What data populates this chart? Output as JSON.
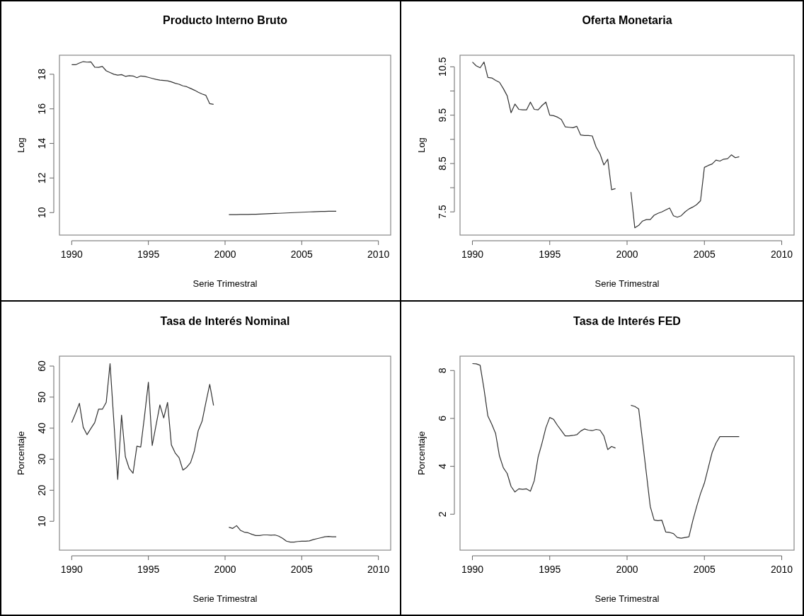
{
  "chart_data": [
    {
      "type": "line",
      "title": "Producto Interno Bruto",
      "xlabel": "Serie Trimestral",
      "ylabel": "Log",
      "xlim": [
        1989.2,
        2010.8
      ],
      "ylim": [
        8.7,
        19.1
      ],
      "xticks": [
        1990,
        1995,
        2000,
        2005,
        2010
      ],
      "yticks": [
        10,
        12,
        14,
        16,
        18
      ],
      "x": [
        1990,
        1990.25,
        1990.5,
        1990.75,
        1991,
        1991.25,
        1991.5,
        1991.75,
        1992,
        1992.25,
        1992.5,
        1992.75,
        1993,
        1993.25,
        1993.5,
        1993.75,
        1994,
        1994.25,
        1994.5,
        1994.75,
        1995,
        1995.25,
        1995.5,
        1995.75,
        1996,
        1996.25,
        1996.5,
        1996.75,
        1997,
        1997.25,
        1997.5,
        1997.75,
        1998,
        1998.25,
        1998.5,
        1998.75,
        1999,
        1999.25,
        1999.5,
        1999.75,
        2000,
        2000.25,
        2000.5,
        2000.75,
        2001,
        2001.25,
        2001.5,
        2001.75,
        2002,
        2002.25,
        2002.5,
        2002.75,
        2003,
        2003.25,
        2003.5,
        2003.75,
        2004,
        2004.25,
        2004.5,
        2004.75,
        2005,
        2005.25,
        2005.5,
        2005.75,
        2006,
        2006.25,
        2006.5,
        2006.75,
        2007,
        2007.25
      ],
      "series": [
        {
          "color": "#333333",
          "values": [
            18.55,
            18.55,
            18.65,
            18.73,
            18.7,
            18.72,
            18.41,
            18.4,
            18.45,
            18.2,
            18.1,
            18.0,
            17.95,
            17.98,
            17.88,
            17.92,
            17.9,
            17.8,
            17.9,
            17.88,
            17.82,
            17.76,
            17.7,
            17.66,
            17.64,
            17.62,
            17.56,
            17.48,
            17.42,
            17.33,
            17.28,
            17.18,
            17.08,
            16.96,
            16.86,
            16.78,
            16.3,
            16.26,
            null,
            null,
            null,
            9.88,
            9.88,
            9.88,
            9.89,
            9.89,
            9.89,
            9.9,
            9.9,
            9.91,
            9.92,
            9.93,
            9.94,
            9.95,
            9.96,
            9.97,
            9.98,
            9.99,
            10.0,
            10.01,
            10.02,
            10.03,
            10.04,
            10.05,
            10.06,
            10.07,
            10.07,
            10.08,
            10.08,
            10.08
          ]
        }
      ]
    },
    {
      "type": "line",
      "title": "Oferta Monetaria",
      "xlabel": "Serie Trimestral",
      "ylabel": "Log",
      "xlim": [
        1989.2,
        2010.8
      ],
      "ylim": [
        7.02,
        10.74
      ],
      "xticks": [
        1990,
        1995,
        2000,
        2005,
        2010
      ],
      "yticks": [
        7.5,
        {
          "value": 8,
          "label": null
        },
        8.5,
        {
          "value": 9,
          "label": null
        },
        9.5,
        {
          "value": 10,
          "label": null
        },
        10.5
      ],
      "x": [
        1990,
        1990.25,
        1990.5,
        1990.75,
        1991,
        1991.25,
        1991.5,
        1991.75,
        1992,
        1992.25,
        1992.5,
        1992.75,
        1993,
        1993.25,
        1993.5,
        1993.75,
        1994,
        1994.25,
        1994.5,
        1994.75,
        1995,
        1995.25,
        1995.5,
        1995.75,
        1996,
        1996.25,
        1996.5,
        1996.75,
        1997,
        1997.25,
        1997.5,
        1997.75,
        1998,
        1998.25,
        1998.5,
        1998.75,
        1999,
        1999.25,
        1999.5,
        1999.75,
        2000,
        2000.25,
        2000.5,
        2000.75,
        2001,
        2001.25,
        2001.5,
        2001.75,
        2002,
        2002.25,
        2002.5,
        2002.75,
        2003,
        2003.25,
        2003.5,
        2003.75,
        2004,
        2004.25,
        2004.5,
        2004.75,
        2005,
        2005.25,
        2005.5,
        2005.75,
        2006,
        2006.25,
        2006.5,
        2006.75,
        2007,
        2007.25
      ],
      "series": [
        {
          "color": "#333333",
          "values": [
            10.6,
            10.52,
            10.48,
            10.6,
            10.28,
            10.27,
            10.22,
            10.18,
            10.05,
            9.9,
            9.55,
            9.73,
            9.62,
            9.61,
            9.61,
            9.77,
            9.62,
            9.61,
            9.7,
            9.77,
            9.5,
            9.49,
            9.46,
            9.41,
            9.26,
            9.25,
            9.24,
            9.27,
            9.09,
            9.08,
            9.08,
            9.07,
            8.84,
            8.7,
            8.47,
            8.59,
            7.96,
            7.98,
            null,
            null,
            null,
            7.91,
            7.17,
            7.22,
            7.31,
            7.34,
            7.34,
            7.43,
            7.47,
            7.5,
            7.54,
            7.58,
            7.42,
            7.39,
            7.42,
            7.5,
            7.56,
            7.6,
            7.65,
            7.73,
            8.42,
            8.46,
            8.49,
            8.57,
            8.55,
            8.59,
            8.6,
            8.68,
            8.62,
            8.64
          ]
        }
      ]
    },
    {
      "type": "line",
      "title": "Tasa de Interés Nominal",
      "xlabel": "Serie Trimestral",
      "ylabel": "Porcentaje",
      "xlim": [
        1989.2,
        2010.8
      ],
      "ylim": [
        0.7,
        63.2
      ],
      "xticks": [
        1990,
        1995,
        2000,
        2005,
        2010
      ],
      "yticks": [
        10,
        20,
        30,
        40,
        50,
        60
      ],
      "x": [
        1990,
        1990.25,
        1990.5,
        1990.75,
        1991,
        1991.25,
        1991.5,
        1991.75,
        1992,
        1992.25,
        1992.5,
        1992.75,
        1993,
        1993.25,
        1993.5,
        1993.75,
        1994,
        1994.25,
        1994.5,
        1994.75,
        1995,
        1995.25,
        1995.5,
        1995.75,
        1996,
        1996.25,
        1996.5,
        1996.75,
        1997,
        1997.25,
        1997.5,
        1997.75,
        1998,
        1998.25,
        1998.5,
        1998.75,
        1999,
        1999.25,
        1999.5,
        1999.75,
        2000,
        2000.25,
        2000.5,
        2000.75,
        2001,
        2001.25,
        2001.5,
        2001.75,
        2002,
        2002.25,
        2002.5,
        2002.75,
        2003,
        2003.25,
        2003.5,
        2003.75,
        2004,
        2004.25,
        2004.5,
        2004.75,
        2005,
        2005.25,
        2005.5,
        2005.75,
        2006,
        2006.25,
        2006.5,
        2006.75,
        2007,
        2007.25
      ],
      "series": [
        {
          "color": "#333333",
          "values": [
            41.8,
            44.8,
            48.0,
            40.3,
            37.9,
            39.9,
            41.8,
            46.1,
            46.1,
            48.3,
            60.8,
            42,
            23.5,
            44.2,
            30.8,
            27.0,
            25.5,
            34.2,
            33.9,
            44,
            54.8,
            34.4,
            41,
            47.5,
            43.3,
            48.3,
            34.6,
            32.0,
            30.5,
            26.5,
            27.4,
            28.9,
            32.7,
            39.2,
            42.2,
            48.3,
            54.1,
            47.3,
            null,
            null,
            null,
            8.1,
            7.7,
            8.6,
            7.1,
            6.5,
            6.3,
            5.8,
            5.4,
            5.4,
            5.6,
            5.6,
            5.5,
            5.6,
            5.2,
            4.5,
            3.6,
            3.3,
            3.3,
            3.5,
            3.6,
            3.6,
            3.7,
            4.1,
            4.4,
            4.7,
            5.0,
            5.1,
            5.0,
            5.0
          ]
        }
      ]
    },
    {
      "type": "line",
      "title": "Tasa de Interés FED",
      "xlabel": "Serie Trimestral",
      "ylabel": "Porcentaje",
      "xlim": [
        1989.2,
        2010.8
      ],
      "ylim": [
        0.5,
        8.6
      ],
      "xticks": [
        1990,
        1995,
        2000,
        2005,
        2010
      ],
      "yticks": [
        2,
        4,
        6,
        8
      ],
      "x": [
        1990,
        1990.25,
        1990.5,
        1990.75,
        1991,
        1991.25,
        1991.5,
        1991.75,
        1992,
        1992.25,
        1992.5,
        1992.75,
        1993,
        1993.25,
        1993.5,
        1993.75,
        1994,
        1994.25,
        1994.5,
        1994.75,
        1995,
        1995.25,
        1995.5,
        1995.75,
        1996,
        1996.25,
        1996.5,
        1996.75,
        1997,
        1997.25,
        1997.5,
        1997.75,
        1998,
        1998.25,
        1998.5,
        1998.75,
        1999,
        1999.25,
        1999.5,
        1999.75,
        2000,
        2000.25,
        2000.5,
        2000.75,
        2001,
        2001.25,
        2001.5,
        2001.75,
        2002,
        2002.25,
        2002.5,
        2002.75,
        2003,
        2003.25,
        2003.5,
        2003.75,
        2004,
        2004.25,
        2004.5,
        2004.75,
        2005,
        2005.25,
        2005.5,
        2005.75,
        2006,
        2006.25,
        2006.5,
        2006.75,
        2007,
        2007.25
      ],
      "series": [
        {
          "color": "#333333",
          "values": [
            8.29,
            8.28,
            8.22,
            7.23,
            6.1,
            5.76,
            5.37,
            4.43,
            3.94,
            3.7,
            3.16,
            2.93,
            3.06,
            3.04,
            3.06,
            2.96,
            3.4,
            4.39,
            4.97,
            5.61,
            6.04,
            5.96,
            5.71,
            5.49,
            5.27,
            5.27,
            5.29,
            5.32,
            5.47,
            5.56,
            5.51,
            5.49,
            5.54,
            5.51,
            5.27,
            4.7,
            4.83,
            4.76,
            null,
            null,
            null,
            6.55,
            6.5,
            6.4,
            5.07,
            3.7,
            2.32,
            1.76,
            1.73,
            1.75,
            1.26,
            1.24,
            1.19,
            1.03,
            1.0,
            1.03,
            1.06,
            1.73,
            2.32,
            2.86,
            3.3,
            3.94,
            4.58,
            4.97,
            5.24,
            5.24,
            5.24,
            5.24,
            5.24,
            5.24
          ]
        }
      ]
    }
  ]
}
